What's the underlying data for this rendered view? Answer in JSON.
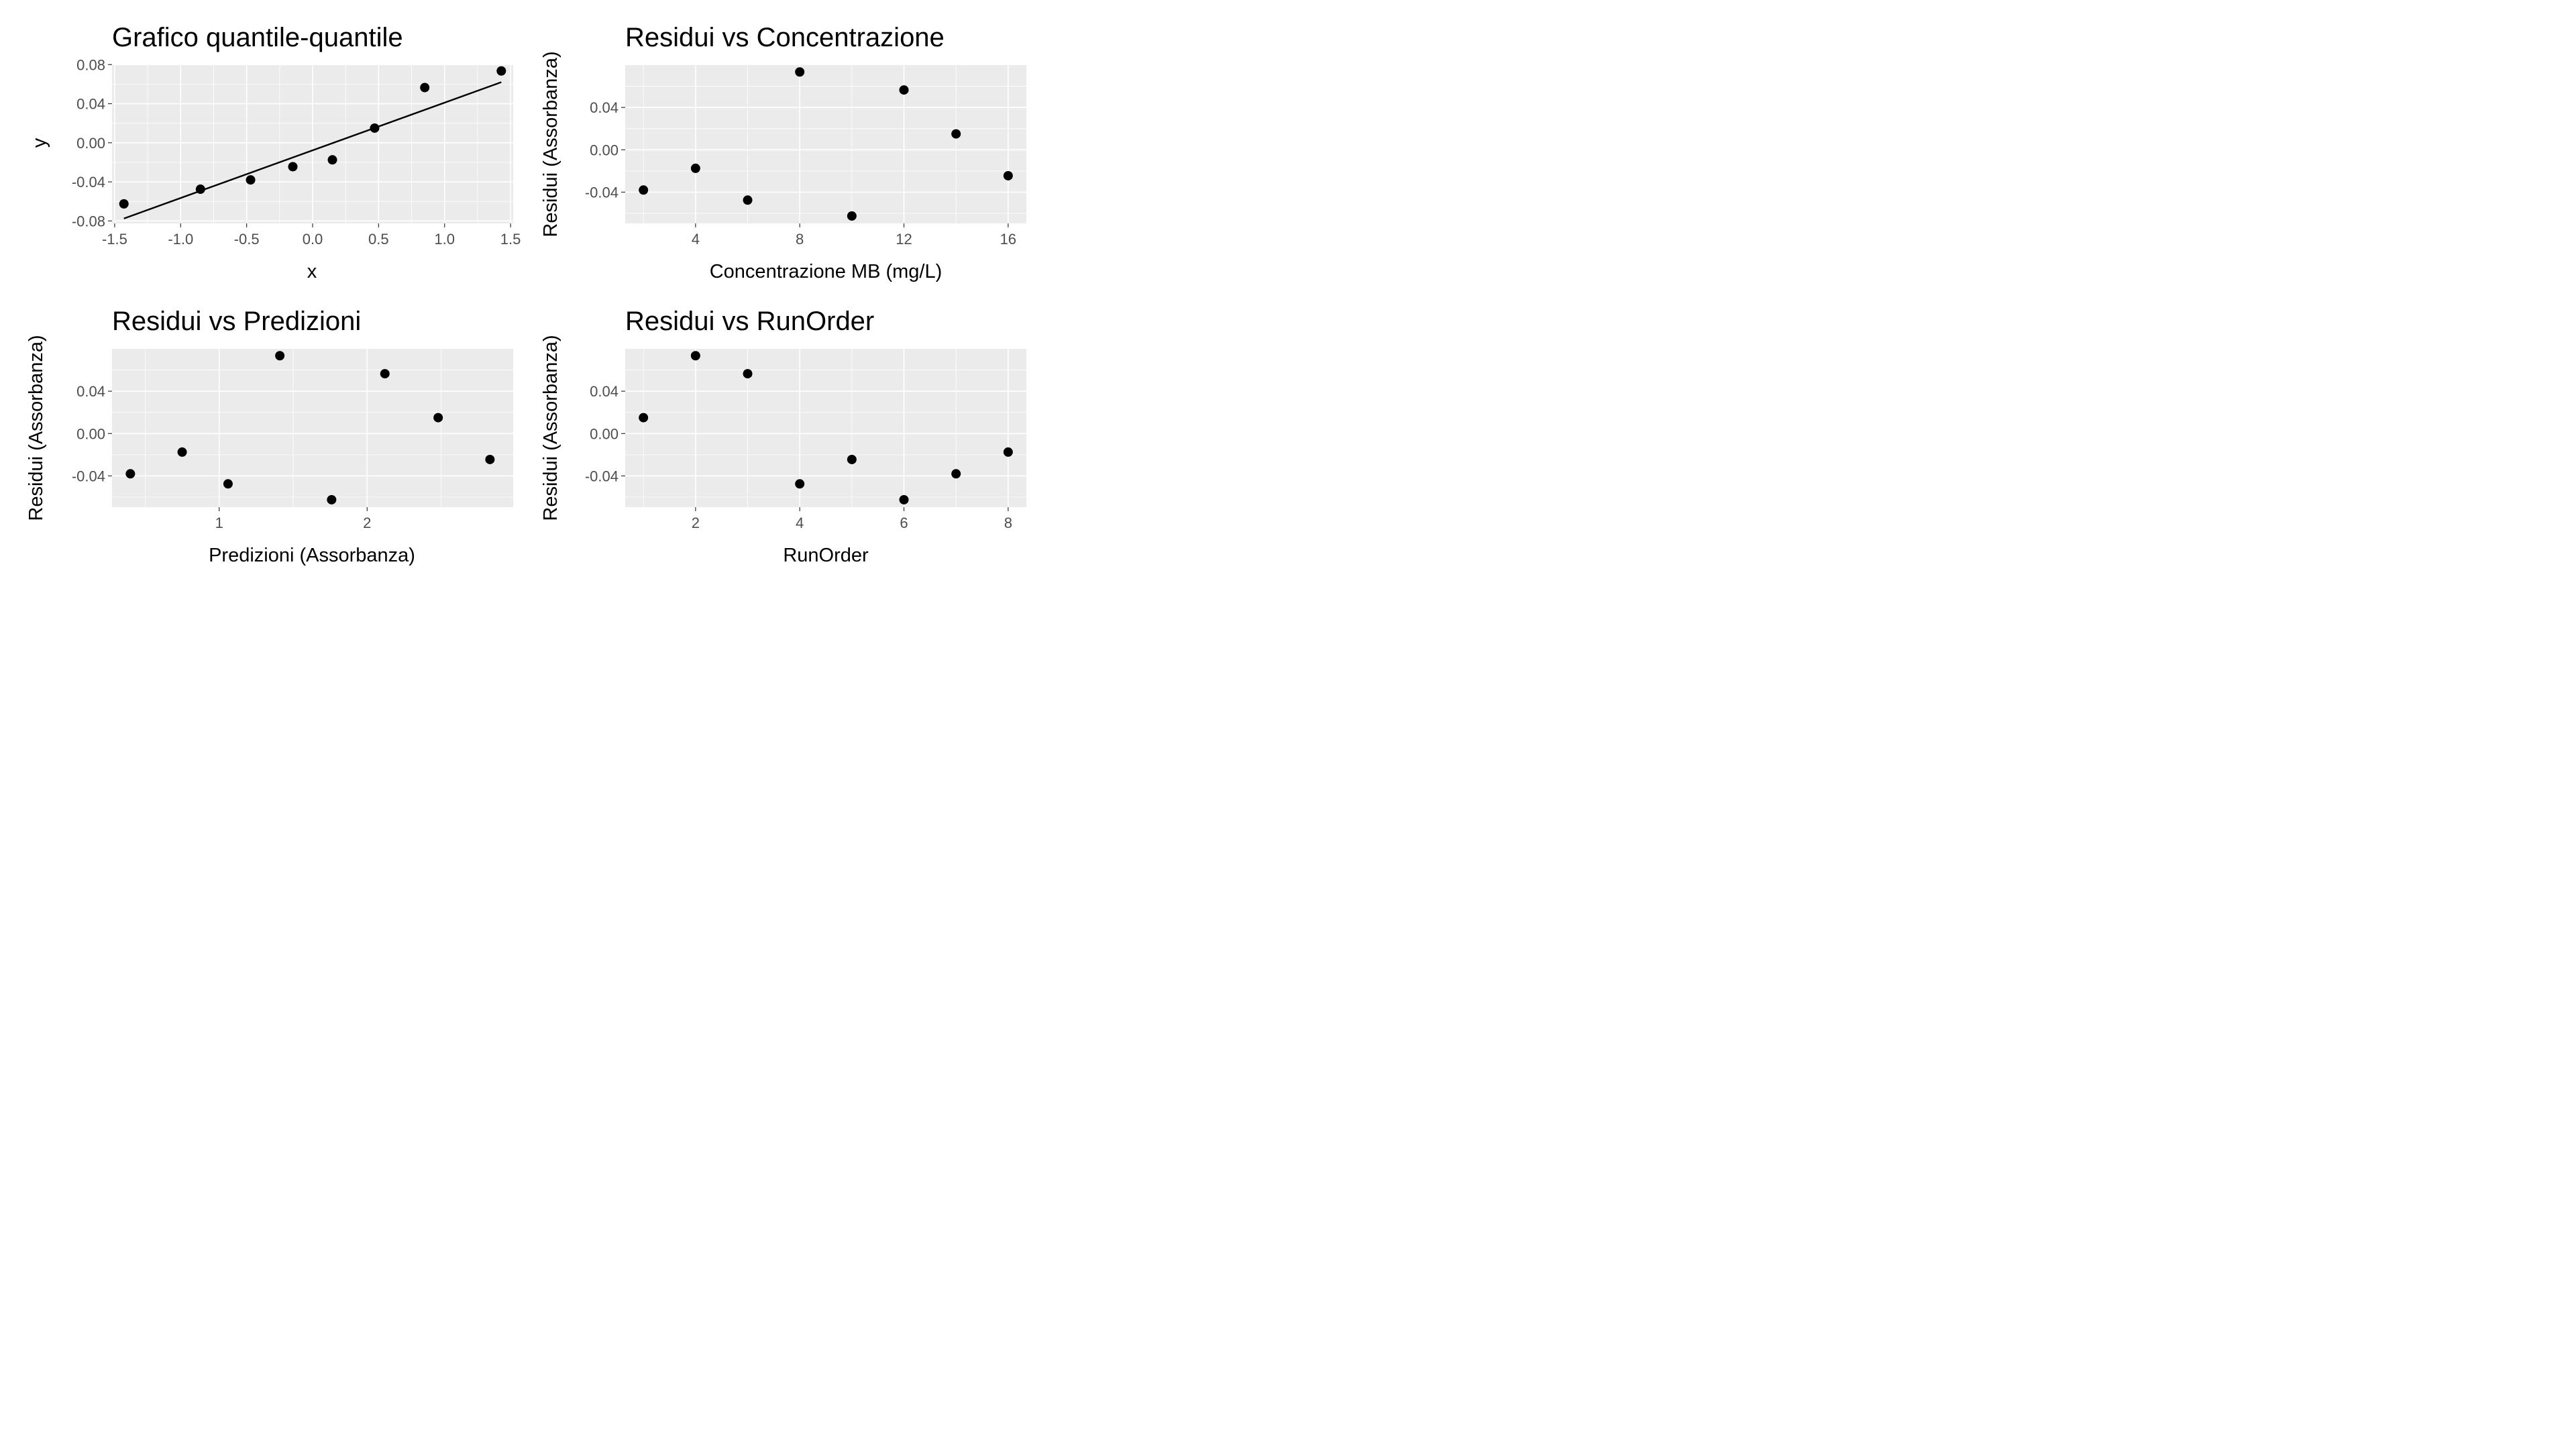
{
  "chart_data": [
    {
      "type": "scatter",
      "title": "Grafico quantile-quantile",
      "xlabel": "x",
      "ylabel": "y",
      "xlim": [
        -1.52,
        1.52
      ],
      "ylim": [
        -0.0825,
        0.0795
      ],
      "x_ticks": [
        -1.5,
        -1.0,
        -0.5,
        0.0,
        0.5,
        1.0,
        1.5
      ],
      "x_tick_labels": [
        "-1.5",
        "-1.0",
        "-0.5",
        "0.0",
        "0.5",
        "1.0",
        "1.5"
      ],
      "y_ticks": [
        -0.08,
        -0.04,
        0.0,
        0.04,
        0.08
      ],
      "y_tick_labels": [
        "-0.08",
        "-0.04",
        "0.00",
        "0.04",
        "0.08"
      ],
      "grid": true,
      "points": [
        {
          "x": -1.43,
          "y": -0.0625
        },
        {
          "x": -0.85,
          "y": -0.0475
        },
        {
          "x": -0.47,
          "y": -0.038
        },
        {
          "x": -0.15,
          "y": -0.0245
        },
        {
          "x": 0.15,
          "y": -0.0175
        },
        {
          "x": 0.47,
          "y": 0.015
        },
        {
          "x": 0.85,
          "y": 0.0565
        },
        {
          "x": 1.43,
          "y": 0.0735
        }
      ],
      "reference_line": {
        "x1": -1.43,
        "y1": -0.0775,
        "x2": 1.43,
        "y2": 0.062
      }
    },
    {
      "type": "scatter",
      "title": "Residui vs Concentrazione",
      "xlabel": "Concentrazione MB (mg/L)",
      "ylabel": "Residui (Assorbanza)",
      "xlim": [
        1.3,
        16.7
      ],
      "ylim": [
        -0.0695,
        0.08
      ],
      "x_ticks": [
        4,
        8,
        12,
        16
      ],
      "x_tick_labels": [
        "4",
        "8",
        "12",
        "16"
      ],
      "y_ticks": [
        -0.04,
        0.0,
        0.04
      ],
      "y_tick_labels": [
        "-0.04",
        "0.00",
        "0.04"
      ],
      "grid": true,
      "points": [
        {
          "x": 2,
          "y": -0.038
        },
        {
          "x": 4,
          "y": -0.0175
        },
        {
          "x": 6,
          "y": -0.0475
        },
        {
          "x": 8,
          "y": 0.0735
        },
        {
          "x": 10,
          "y": -0.0625
        },
        {
          "x": 12,
          "y": 0.0565
        },
        {
          "x": 14,
          "y": 0.015
        },
        {
          "x": 16,
          "y": -0.0245
        }
      ]
    },
    {
      "type": "scatter",
      "title": "Residui vs Predizioni",
      "xlabel": "Predizioni (Assorbanza)",
      "ylabel": "Residui (Assorbanza)",
      "xlim": [
        0.276,
        2.987
      ],
      "ylim": [
        -0.0695,
        0.08
      ],
      "x_ticks": [
        1,
        2
      ],
      "x_tick_labels": [
        "1",
        "2"
      ],
      "y_ticks": [
        -0.04,
        0.0,
        0.04
      ],
      "y_tick_labels": [
        "-0.04",
        "0.00",
        "0.04"
      ],
      "grid": true,
      "points": [
        {
          "x": 0.4,
          "y": -0.038
        },
        {
          "x": 0.75,
          "y": -0.0175
        },
        {
          "x": 1.06,
          "y": -0.0475
        },
        {
          "x": 1.41,
          "y": 0.0735
        },
        {
          "x": 1.76,
          "y": -0.0625
        },
        {
          "x": 2.12,
          "y": 0.0565
        },
        {
          "x": 2.48,
          "y": 0.015
        },
        {
          "x": 2.83,
          "y": -0.0245
        }
      ]
    },
    {
      "type": "scatter",
      "title": "Residui vs RunOrder",
      "xlabel": "RunOrder",
      "ylabel": "Residui (Assorbanza)",
      "xlim": [
        0.65,
        8.35
      ],
      "ylim": [
        -0.0695,
        0.08
      ],
      "x_ticks": [
        2,
        4,
        6,
        8
      ],
      "x_tick_labels": [
        "2",
        "4",
        "6",
        "8"
      ],
      "y_ticks": [
        -0.04,
        0.0,
        0.04
      ],
      "y_tick_labels": [
        "-0.04",
        "0.00",
        "0.04"
      ],
      "grid": true,
      "points": [
        {
          "x": 1,
          "y": 0.015
        },
        {
          "x": 2,
          "y": 0.0735
        },
        {
          "x": 3,
          "y": 0.0565
        },
        {
          "x": 4,
          "y": -0.0475
        },
        {
          "x": 5,
          "y": -0.0245
        },
        {
          "x": 6,
          "y": -0.0625
        },
        {
          "x": 7,
          "y": -0.038
        },
        {
          "x": 8,
          "y": -0.0175
        }
      ]
    }
  ]
}
